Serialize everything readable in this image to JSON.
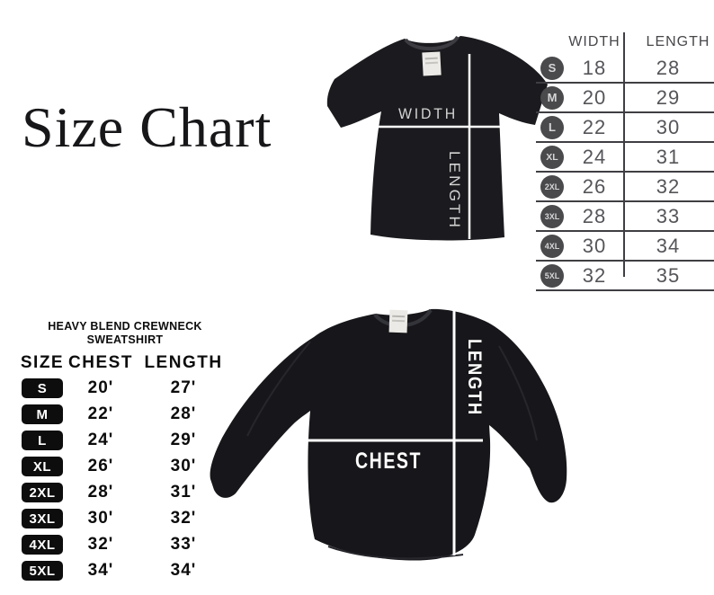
{
  "title": "Size Chart",
  "colors": {
    "tshirt_fill": "#1b1b1f",
    "sweatshirt_fill": "#17171b",
    "measure_line": "#ffffff",
    "table_line": "#3f3f43",
    "tt_badge_bg": "#4a4a4d",
    "st_badge_bg": "#0d0d0d",
    "thin_label": "#d4d4d4"
  },
  "tshirt_diagram": {
    "width_label": "WIDTH",
    "length_label": "LENGTH"
  },
  "tshirt_table": {
    "columns": [
      "WIDTH",
      "LENGTH"
    ],
    "rows": [
      {
        "size": "S",
        "width": "18",
        "length": "28"
      },
      {
        "size": "M",
        "width": "20",
        "length": "29"
      },
      {
        "size": "L",
        "width": "22",
        "length": "30"
      },
      {
        "size": "XL",
        "width": "24",
        "length": "31"
      },
      {
        "size": "2XL",
        "width": "26",
        "length": "32"
      },
      {
        "size": "3XL",
        "width": "28",
        "length": "33"
      },
      {
        "size": "4XL",
        "width": "30",
        "length": "34"
      },
      {
        "size": "5XL",
        "width": "32",
        "length": "35"
      }
    ]
  },
  "sweatshirt_table": {
    "title_line1": "HEAVY BLEND CREWNECK",
    "title_line2": "SWEATSHIRT",
    "columns": [
      "SIZE",
      "CHEST",
      "LENGTH"
    ],
    "rows": [
      {
        "size": "S",
        "chest": "20'",
        "length": "27'"
      },
      {
        "size": "M",
        "chest": "22'",
        "length": "28'"
      },
      {
        "size": "L",
        "chest": "24'",
        "length": "29'"
      },
      {
        "size": "XL",
        "chest": "26'",
        "length": "30'"
      },
      {
        "size": "2XL",
        "chest": "28'",
        "length": "31'"
      },
      {
        "size": "3XL",
        "chest": "30'",
        "length": "32'"
      },
      {
        "size": "4XL",
        "chest": "32'",
        "length": "33'"
      },
      {
        "size": "5XL",
        "chest": "34'",
        "length": "34'"
      }
    ]
  },
  "sweatshirt_diagram": {
    "chest_label": "CHEST",
    "length_label": "LENGTH"
  }
}
